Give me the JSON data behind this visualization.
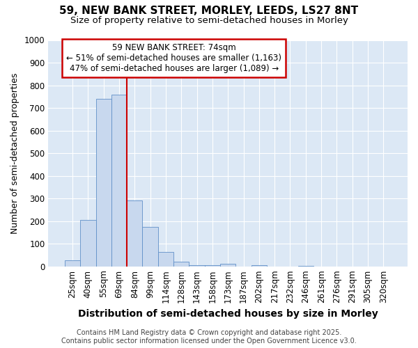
{
  "title1": "59, NEW BANK STREET, MORLEY, LEEDS, LS27 8NT",
  "title2": "Size of property relative to semi-detached houses in Morley",
  "xlabel": "Distribution of semi-detached houses by size in Morley",
  "ylabel": "Number of semi-detached properties",
  "categories": [
    "25sqm",
    "40sqm",
    "55sqm",
    "69sqm",
    "84sqm",
    "99sqm",
    "114sqm",
    "128sqm",
    "143sqm",
    "158sqm",
    "173sqm",
    "187sqm",
    "202sqm",
    "217sqm",
    "232sqm",
    "246sqm",
    "261sqm",
    "276sqm",
    "291sqm",
    "305sqm",
    "320sqm"
  ],
  "values": [
    28,
    205,
    740,
    760,
    290,
    175,
    65,
    20,
    5,
    5,
    12,
    0,
    5,
    0,
    0,
    3,
    0,
    0,
    0,
    0,
    0
  ],
  "bar_color": "#c8d8ee",
  "bar_edge_color": "#6090c8",
  "red_line_x": 3.5,
  "ylim": [
    0,
    1000
  ],
  "yticks": [
    0,
    100,
    200,
    300,
    400,
    500,
    600,
    700,
    800,
    900,
    1000
  ],
  "annotation_title": "59 NEW BANK STREET: 74sqm",
  "annotation_line1": "← 51% of semi-detached houses are smaller (1,163)",
  "annotation_line2": "47% of semi-detached houses are larger (1,089) →",
  "annotation_box_facecolor": "#ffffff",
  "annotation_box_edgecolor": "#cc0000",
  "fig_facecolor": "#ffffff",
  "plot_facecolor": "#dce8f5",
  "grid_color": "#ffffff",
  "title_fontsize": 11,
  "subtitle_fontsize": 9.5,
  "xlabel_fontsize": 10,
  "ylabel_fontsize": 9,
  "tick_fontsize": 8.5,
  "annotation_fontsize": 8.5,
  "footer_fontsize": 7,
  "footer1": "Contains HM Land Registry data © Crown copyright and database right 2025.",
  "footer2": "Contains public sector information licensed under the Open Government Licence v3.0."
}
